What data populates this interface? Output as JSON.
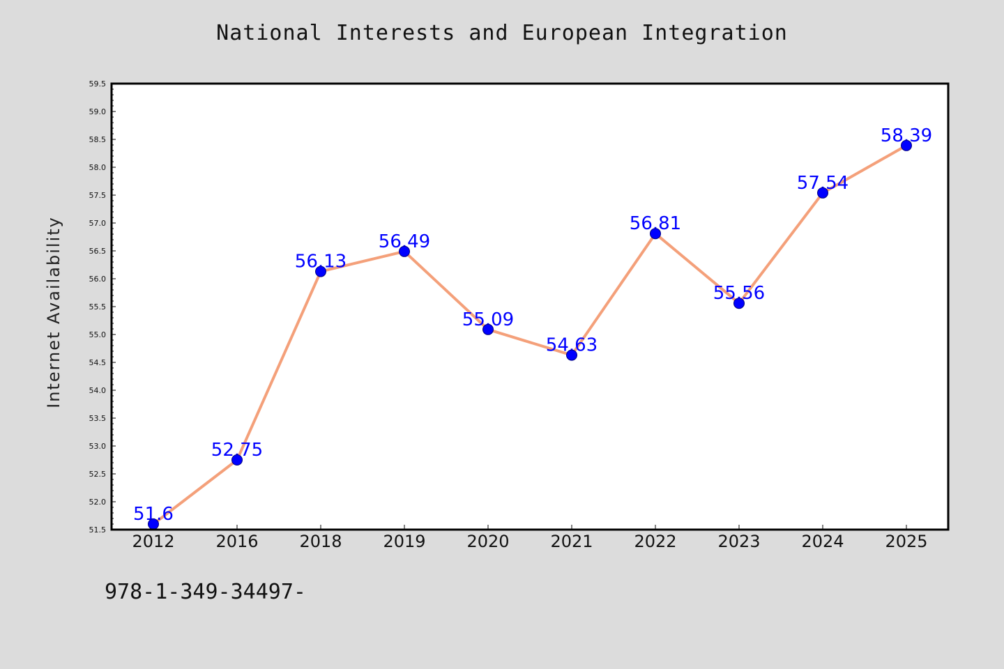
{
  "footer_note": "978-1-349-34497-",
  "chart_data": {
    "type": "line",
    "title": "National Interests and European Integration",
    "xlabel": "",
    "ylabel": "Internet Availability",
    "categories": [
      "2012",
      "2016",
      "2018",
      "2019",
      "2020",
      "2021",
      "2022",
      "2023",
      "2024",
      "2025"
    ],
    "values": [
      51.6,
      52.75,
      56.13,
      56.49,
      55.09,
      54.63,
      56.81,
      55.56,
      57.54,
      58.39
    ],
    "data_labels": [
      "51.6",
      "52.75",
      "56.13",
      "56.49",
      "55.09",
      "54.63",
      "56.81",
      "55.56",
      "57.54",
      "58.39"
    ],
    "ylim": [
      51.5,
      59.5
    ],
    "ytick_step": 0.5,
    "grid": false,
    "legend": "none",
    "colors": {
      "line": "#f4a07a",
      "marker": "#0000ff",
      "marker_edge": "#000080",
      "label": "#0000ff",
      "background": "#dcdcdc",
      "plot_background": "#ffffff"
    }
  }
}
